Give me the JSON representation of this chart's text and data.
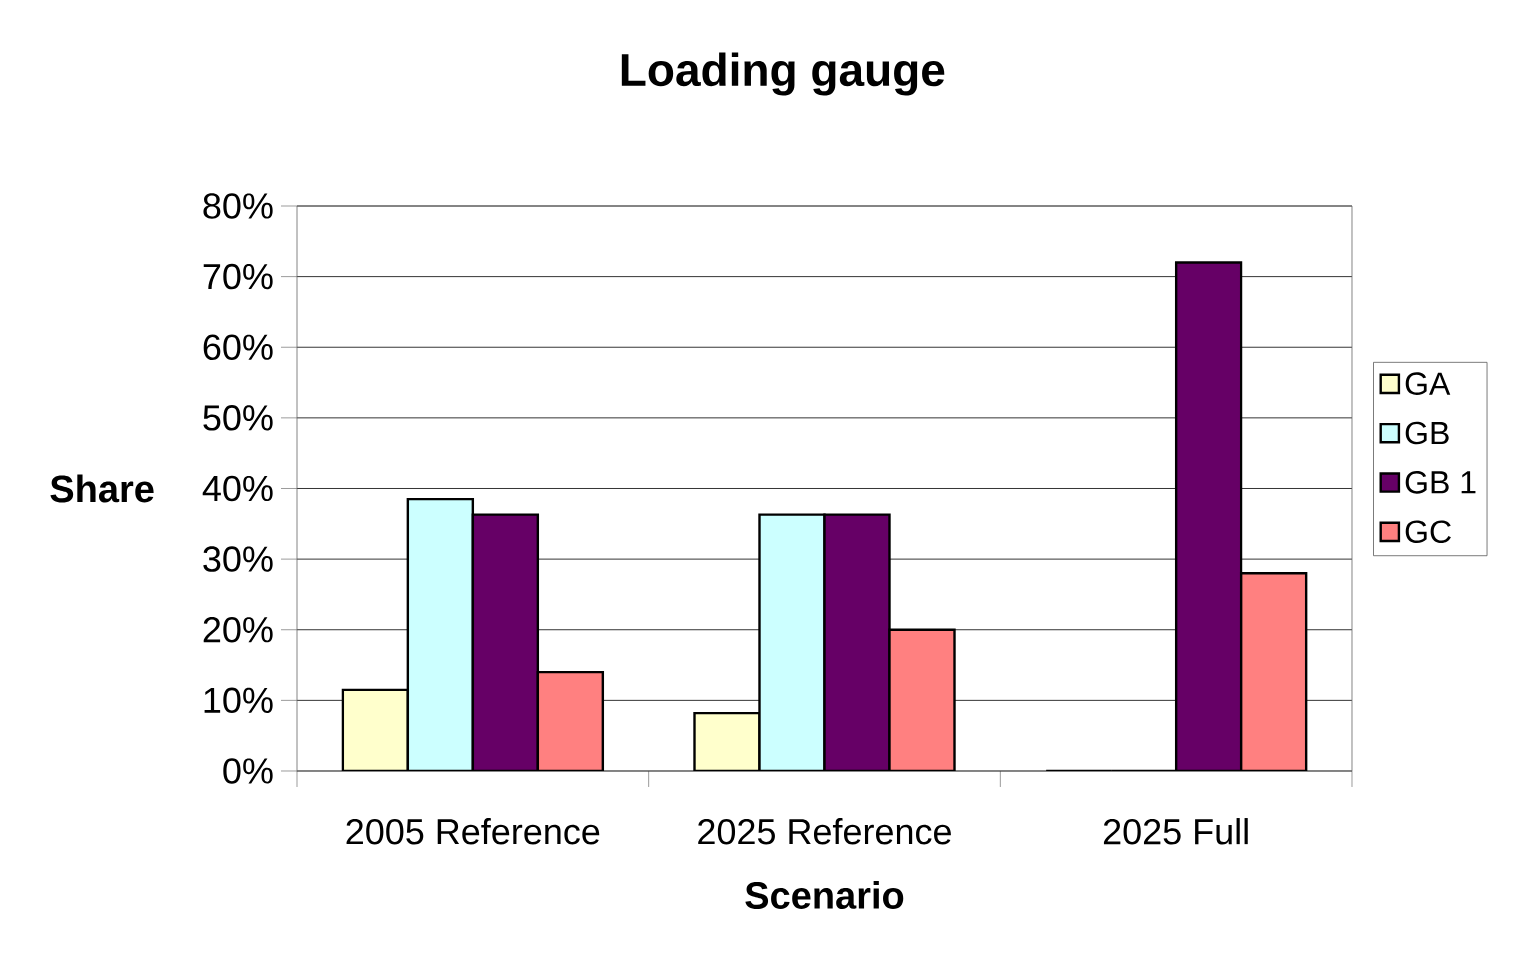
{
  "chart_data": {
    "type": "bar",
    "title": "Loading gauge",
    "xlabel": "Scenario",
    "ylabel": "Share",
    "categories": [
      "2005 Reference",
      "2025 Reference",
      "2025 Full"
    ],
    "series": [
      {
        "name": "GA",
        "color": "#ffffcc",
        "values": [
          11.5,
          8.2,
          0
        ]
      },
      {
        "name": "GB",
        "color": "#ccffff",
        "values": [
          38.5,
          36.3,
          0
        ]
      },
      {
        "name": "GB 1",
        "color": "#660066",
        "values": [
          36.3,
          36.3,
          72
        ]
      },
      {
        "name": "GC",
        "color": "#ff8080",
        "values": [
          14,
          20,
          28
        ]
      }
    ],
    "ylim": [
      0,
      80
    ],
    "yticks": [
      {
        "value": 0,
        "label": "0%"
      },
      {
        "value": 10,
        "label": "10%"
      },
      {
        "value": 20,
        "label": "20%"
      },
      {
        "value": 30,
        "label": "30%"
      },
      {
        "value": 40,
        "label": "40%"
      },
      {
        "value": 50,
        "label": "50%"
      },
      {
        "value": 60,
        "label": "60%"
      },
      {
        "value": 70,
        "label": "70%"
      },
      {
        "value": 80,
        "label": "80%"
      }
    ],
    "grid": "y",
    "legend": "right"
  }
}
